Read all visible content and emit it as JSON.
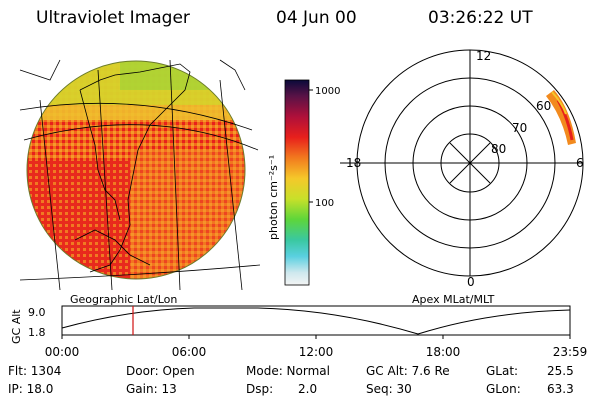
{
  "header": {
    "instrument": "Ultraviolet Imager",
    "date": "04 Jun 00",
    "time": "03:26:22 UT"
  },
  "colorbar": {
    "label": "photon cm⁻²s⁻¹",
    "tick_top": "1000",
    "tick_mid": "100"
  },
  "panels": {
    "left_label": "Geographic Lat/Lon",
    "right_label": "Apex MLat/MLT"
  },
  "polar": {
    "mlt_top": "12",
    "mlt_left": "18",
    "mlt_right": "6",
    "mlt_bottom": "0",
    "ring_60": "60",
    "ring_70": "70",
    "ring_80": "80"
  },
  "altitude_plot": {
    "ylabel": "GC Alt",
    "ytick_top": "9.0",
    "ytick_bottom": "1.8",
    "xticks": [
      "00:00",
      "06:00",
      "12:00",
      "18:00",
      "23:59"
    ],
    "marker_time": "03:26"
  },
  "stats": {
    "flt": "Flt: 1304",
    "ip": "IP: 18.0",
    "door": "Door: Open",
    "gain": "Gain: 13",
    "mode": "Mode: Normal",
    "dsp_label": "Dsp:",
    "dsp_value": "2.0",
    "gcalt": "GC Alt: 7.6 Re",
    "seq": "Seq: 30",
    "glat_label": "GLat:",
    "glat_value": "25.5",
    "glon_label": "GLon:",
    "glon_value": "63.3"
  }
}
